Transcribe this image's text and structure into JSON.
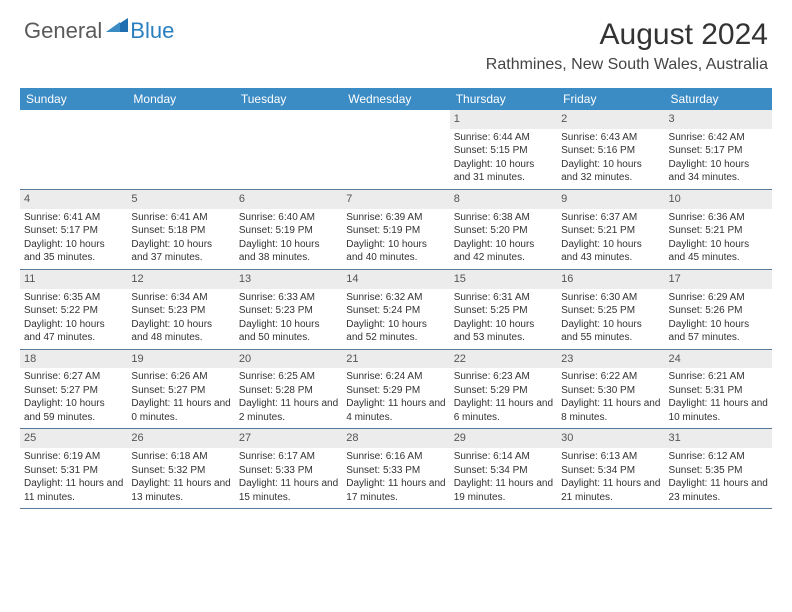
{
  "brand": {
    "part1": "General",
    "part2": "Blue"
  },
  "title": "August 2024",
  "location": "Rathmines, New South Wales, Australia",
  "header_bg": "#3b8bc4",
  "day_headers": [
    "Sunday",
    "Monday",
    "Tuesday",
    "Wednesday",
    "Thursday",
    "Friday",
    "Saturday"
  ],
  "weeks": [
    [
      {
        "empty": true
      },
      {
        "empty": true
      },
      {
        "empty": true
      },
      {
        "empty": true
      },
      {
        "n": "1",
        "sunrise": "6:44 AM",
        "sunset": "5:15 PM",
        "dl": "10 hours and 31 minutes."
      },
      {
        "n": "2",
        "sunrise": "6:43 AM",
        "sunset": "5:16 PM",
        "dl": "10 hours and 32 minutes."
      },
      {
        "n": "3",
        "sunrise": "6:42 AM",
        "sunset": "5:17 PM",
        "dl": "10 hours and 34 minutes."
      }
    ],
    [
      {
        "n": "4",
        "sunrise": "6:41 AM",
        "sunset": "5:17 PM",
        "dl": "10 hours and 35 minutes."
      },
      {
        "n": "5",
        "sunrise": "6:41 AM",
        "sunset": "5:18 PM",
        "dl": "10 hours and 37 minutes."
      },
      {
        "n": "6",
        "sunrise": "6:40 AM",
        "sunset": "5:19 PM",
        "dl": "10 hours and 38 minutes."
      },
      {
        "n": "7",
        "sunrise": "6:39 AM",
        "sunset": "5:19 PM",
        "dl": "10 hours and 40 minutes."
      },
      {
        "n": "8",
        "sunrise": "6:38 AM",
        "sunset": "5:20 PM",
        "dl": "10 hours and 42 minutes."
      },
      {
        "n": "9",
        "sunrise": "6:37 AM",
        "sunset": "5:21 PM",
        "dl": "10 hours and 43 minutes."
      },
      {
        "n": "10",
        "sunrise": "6:36 AM",
        "sunset": "5:21 PM",
        "dl": "10 hours and 45 minutes."
      }
    ],
    [
      {
        "n": "11",
        "sunrise": "6:35 AM",
        "sunset": "5:22 PM",
        "dl": "10 hours and 47 minutes."
      },
      {
        "n": "12",
        "sunrise": "6:34 AM",
        "sunset": "5:23 PM",
        "dl": "10 hours and 48 minutes."
      },
      {
        "n": "13",
        "sunrise": "6:33 AM",
        "sunset": "5:23 PM",
        "dl": "10 hours and 50 minutes."
      },
      {
        "n": "14",
        "sunrise": "6:32 AM",
        "sunset": "5:24 PM",
        "dl": "10 hours and 52 minutes."
      },
      {
        "n": "15",
        "sunrise": "6:31 AM",
        "sunset": "5:25 PM",
        "dl": "10 hours and 53 minutes."
      },
      {
        "n": "16",
        "sunrise": "6:30 AM",
        "sunset": "5:25 PM",
        "dl": "10 hours and 55 minutes."
      },
      {
        "n": "17",
        "sunrise": "6:29 AM",
        "sunset": "5:26 PM",
        "dl": "10 hours and 57 minutes."
      }
    ],
    [
      {
        "n": "18",
        "sunrise": "6:27 AM",
        "sunset": "5:27 PM",
        "dl": "10 hours and 59 minutes."
      },
      {
        "n": "19",
        "sunrise": "6:26 AM",
        "sunset": "5:27 PM",
        "dl": "11 hours and 0 minutes."
      },
      {
        "n": "20",
        "sunrise": "6:25 AM",
        "sunset": "5:28 PM",
        "dl": "11 hours and 2 minutes."
      },
      {
        "n": "21",
        "sunrise": "6:24 AM",
        "sunset": "5:29 PM",
        "dl": "11 hours and 4 minutes."
      },
      {
        "n": "22",
        "sunrise": "6:23 AM",
        "sunset": "5:29 PM",
        "dl": "11 hours and 6 minutes."
      },
      {
        "n": "23",
        "sunrise": "6:22 AM",
        "sunset": "5:30 PM",
        "dl": "11 hours and 8 minutes."
      },
      {
        "n": "24",
        "sunrise": "6:21 AM",
        "sunset": "5:31 PM",
        "dl": "11 hours and 10 minutes."
      }
    ],
    [
      {
        "n": "25",
        "sunrise": "6:19 AM",
        "sunset": "5:31 PM",
        "dl": "11 hours and 11 minutes."
      },
      {
        "n": "26",
        "sunrise": "6:18 AM",
        "sunset": "5:32 PM",
        "dl": "11 hours and 13 minutes."
      },
      {
        "n": "27",
        "sunrise": "6:17 AM",
        "sunset": "5:33 PM",
        "dl": "11 hours and 15 minutes."
      },
      {
        "n": "28",
        "sunrise": "6:16 AM",
        "sunset": "5:33 PM",
        "dl": "11 hours and 17 minutes."
      },
      {
        "n": "29",
        "sunrise": "6:14 AM",
        "sunset": "5:34 PM",
        "dl": "11 hours and 19 minutes."
      },
      {
        "n": "30",
        "sunrise": "6:13 AM",
        "sunset": "5:34 PM",
        "dl": "11 hours and 21 minutes."
      },
      {
        "n": "31",
        "sunrise": "6:12 AM",
        "sunset": "5:35 PM",
        "dl": "11 hours and 23 minutes."
      }
    ]
  ],
  "labels": {
    "sunrise": "Sunrise: ",
    "sunset": "Sunset: ",
    "daylight": "Daylight: "
  }
}
